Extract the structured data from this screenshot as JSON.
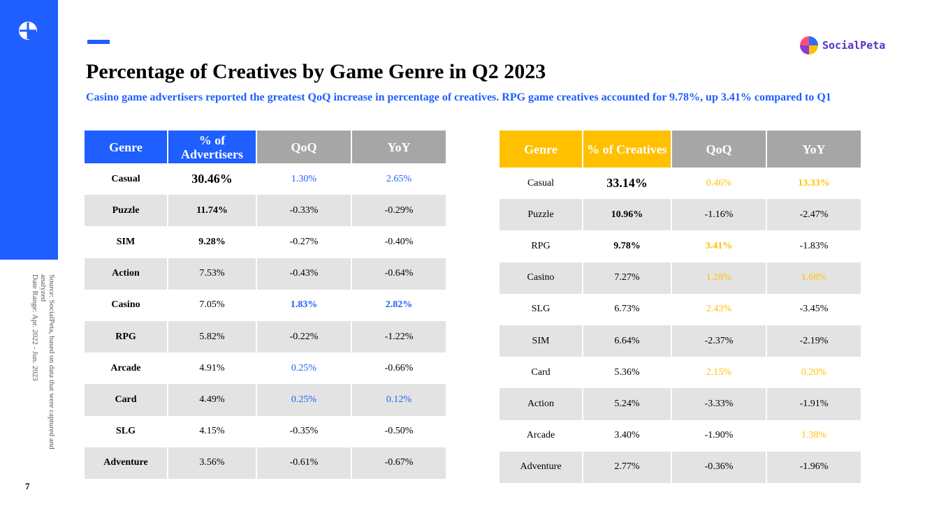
{
  "page": {
    "title": "Percentage of Creatives by Game Genre in Q2 2023",
    "subtitle": "Casino game advertisers reported the greatest QoQ increase in percentage of creatives. RPG game creatives accounted for 9.78%, up 3.41% compared to Q1",
    "brand": "SocialPeta",
    "source_note": "Source: SocialPeta, based on data that were captured and analyzed\nDate Range: Apr. 2022 - Jun. 2023",
    "page_number": "7"
  },
  "colors": {
    "accent": "#1f5eff",
    "highlight": "#ffc000",
    "header_gray": "#a6a6a6",
    "row_alt": "#e3e3e3"
  },
  "icons": {
    "side_logo": "socialpeta-mark-icon",
    "brand_logo": "socialpeta-logo-icon"
  },
  "advertisers_table": {
    "headers": [
      "Genre",
      "% of Advertisers",
      "QoQ",
      "YoY"
    ],
    "rows": [
      [
        "Casual",
        "30.46%",
        "1.30%",
        "2.65%"
      ],
      [
        "Puzzle",
        "11.74%",
        "-0.33%",
        "-0.29%"
      ],
      [
        "SIM",
        "9.28%",
        "-0.27%",
        "-0.40%"
      ],
      [
        "Action",
        "7.53%",
        "-0.43%",
        "-0.64%"
      ],
      [
        "Casino",
        "7.05%",
        "1.83%",
        "2.82%"
      ],
      [
        "RPG",
        "5.82%",
        "-0.22%",
        "-1.22%"
      ],
      [
        "Arcade",
        "4.91%",
        "0.25%",
        "-0.66%"
      ],
      [
        "Card",
        "4.49%",
        "0.25%",
        "0.12%"
      ],
      [
        "SLG",
        "4.15%",
        "-0.35%",
        "-0.50%"
      ],
      [
        "Adventure",
        "3.56%",
        "-0.61%",
        "-0.67%"
      ]
    ]
  },
  "creatives_table": {
    "headers": [
      "Genre",
      "% of Creatives",
      "QoQ",
      "YoY"
    ],
    "rows": [
      [
        "Casual",
        "33.14%",
        "0.46%",
        "13.33%"
      ],
      [
        "Puzzle",
        "10.96%",
        "-1.16%",
        "-2.47%"
      ],
      [
        "RPG",
        "9.78%",
        "3.41%",
        "-1.83%"
      ],
      [
        "Casino",
        "7.27%",
        "1.28%",
        "1.68%"
      ],
      [
        "SLG",
        "6.73%",
        "2.43%",
        "-3.45%"
      ],
      [
        "SIM",
        "6.64%",
        "-2.37%",
        "-2.19%"
      ],
      [
        "Card",
        "5.36%",
        "2.15%",
        "0.20%"
      ],
      [
        "Action",
        "5.24%",
        "-3.33%",
        "-1.91%"
      ],
      [
        "Arcade",
        "3.40%",
        "-1.90%",
        "1.38%"
      ],
      [
        "Adventure",
        "2.77%",
        "-0.36%",
        "-1.96%"
      ]
    ]
  }
}
